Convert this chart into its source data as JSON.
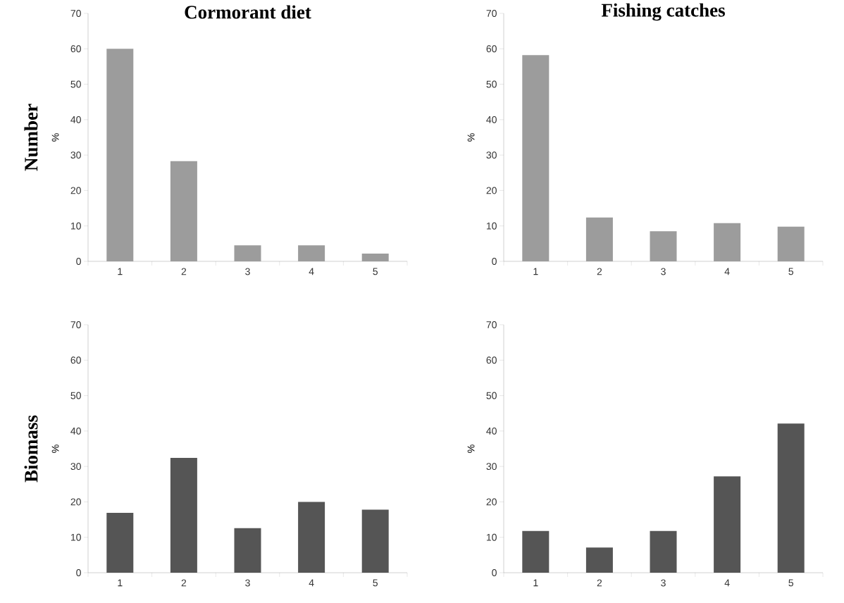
{
  "chart_data": [
    {
      "type": "bar",
      "title": "Cormorant diet",
      "ylabel": "%",
      "annotations": [
        "Number"
      ],
      "categories": [
        "1",
        "2",
        "3",
        "4",
        "5"
      ],
      "values": [
        60,
        28.3,
        4.5,
        4.5,
        2.2
      ],
      "color": "#9c9c9c",
      "ylim": [
        0,
        70
      ],
      "yticks": [
        0,
        10,
        20,
        30,
        40,
        50,
        60,
        70
      ]
    },
    {
      "type": "bar",
      "title": "Fishing catches",
      "ylabel": "%",
      "categories": [
        "1",
        "2",
        "3",
        "4",
        "5"
      ],
      "values": [
        58.2,
        12.4,
        8.5,
        10.8,
        9.8
      ],
      "color": "#9c9c9c",
      "ylim": [
        0,
        70
      ],
      "yticks": [
        0,
        10,
        20,
        30,
        40,
        50,
        60,
        70
      ]
    },
    {
      "type": "bar",
      "ylabel": "%",
      "annotations": [
        "Biomass"
      ],
      "categories": [
        "1",
        "2",
        "3",
        "4",
        "5"
      ],
      "values": [
        16.9,
        32.4,
        12.6,
        20,
        17.8
      ],
      "color": "#555555",
      "ylim": [
        0,
        70
      ],
      "yticks": [
        0,
        10,
        20,
        30,
        40,
        50,
        60,
        70
      ]
    },
    {
      "type": "bar",
      "ylabel": "%",
      "categories": [
        "1",
        "2",
        "3",
        "4",
        "5"
      ],
      "values": [
        11.8,
        7.1,
        11.8,
        27.2,
        42.1
      ],
      "color": "#555555",
      "ylim": [
        0,
        70
      ],
      "yticks": [
        0,
        10,
        20,
        30,
        40,
        50,
        60,
        70
      ]
    }
  ]
}
